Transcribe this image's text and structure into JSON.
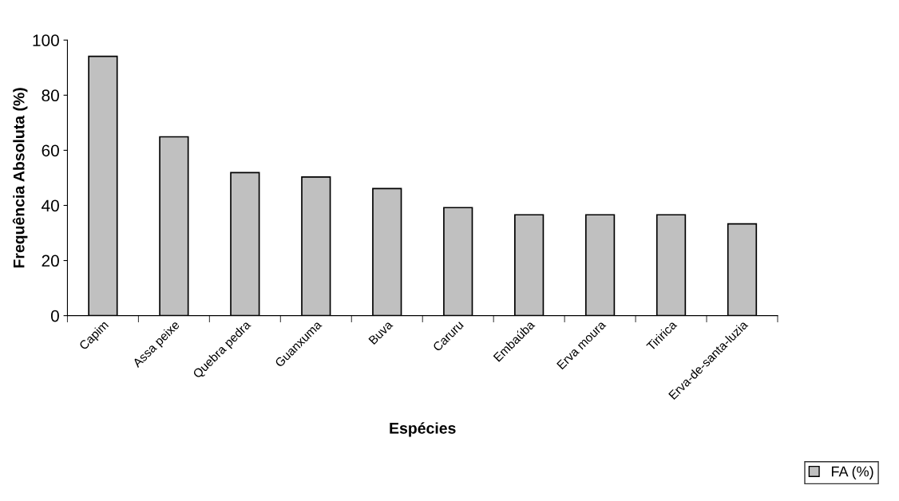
{
  "chart_data": {
    "type": "bar",
    "xlabel": "Espécies",
    "ylabel": "Frequência Absoluta (%)",
    "categories": [
      "Capim",
      "Assa peixe",
      "Quebra pedra",
      "Guanxuma",
      "Buva",
      "Caruru",
      "Embaúba",
      "Erva moura",
      "Tiririca",
      "Erva-de-santa-luzia"
    ],
    "series": [
      {
        "name": "FA (%)",
        "color": "#c0c0c0",
        "values": [
          94.1,
          64.9,
          51.9,
          50.3,
          46.1,
          39.2,
          36.6,
          36.6,
          36.6,
          33.3
        ]
      }
    ],
    "ylim": [
      0,
      100
    ],
    "yticks": [
      0,
      20,
      40,
      60,
      80,
      100
    ],
    "grid": false,
    "legend": "bottom right"
  }
}
